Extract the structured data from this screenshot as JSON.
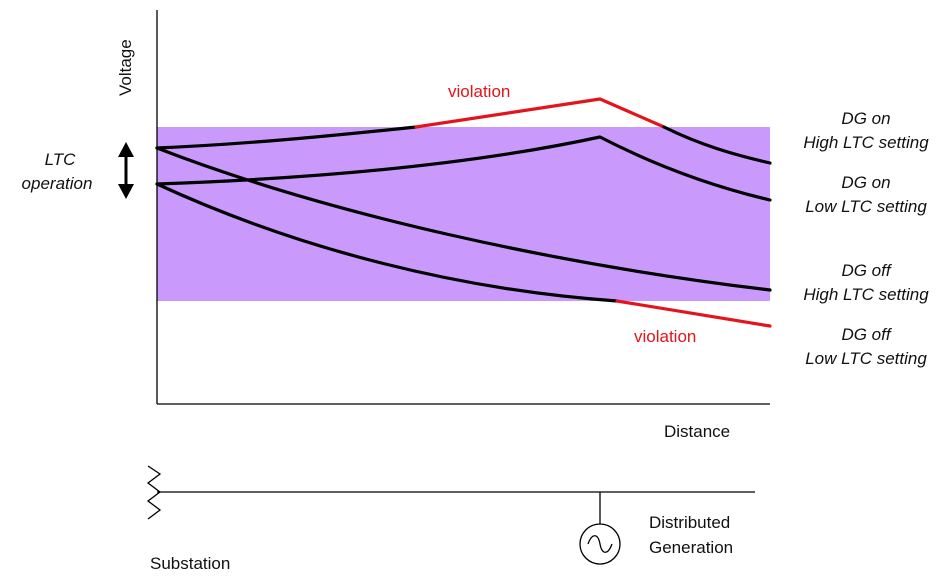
{
  "axes": {
    "y_label": "Voltage",
    "x_label": "Distance"
  },
  "ltc": {
    "label_line1": "LTC",
    "label_line2": "operation"
  },
  "violations": {
    "upper": "violation",
    "lower": "violation"
  },
  "curves": [
    {
      "line1": "DG on",
      "line2": "High LTC setting"
    },
    {
      "line1": "DG on",
      "line2": "Low LTC setting"
    },
    {
      "line1": "DG off",
      "line2": "High LTC setting"
    },
    {
      "line1": "DG off",
      "line2": "Low LTC setting"
    }
  ],
  "feeder": {
    "substation_label": "Substation",
    "dg_label_line1": "Distributed",
    "dg_label_line2": "Generation"
  },
  "colors": {
    "band": "#c99afc",
    "curve": "#000000",
    "violation": "#e3141b"
  }
}
